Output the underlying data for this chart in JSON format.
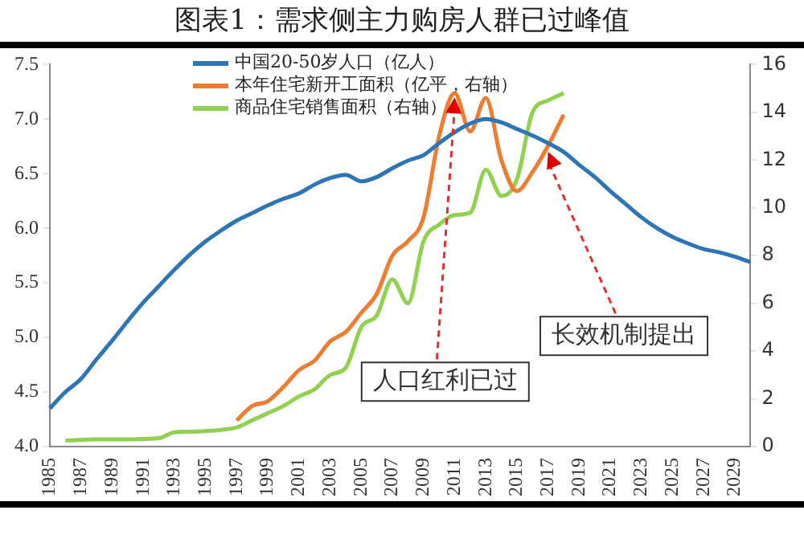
{
  "chart_data": {
    "type": "line",
    "title": "图表1：需求侧主力购房人群已过峰值",
    "categories": [
      "1985",
      null,
      "1987",
      null,
      "1989",
      null,
      "1991",
      null,
      "1993",
      null,
      "1995",
      null,
      "1997",
      null,
      "1999",
      null,
      "2001",
      null,
      "2003",
      null,
      "2005",
      null,
      "2007",
      null,
      "2009",
      null,
      "2011",
      null,
      "2013",
      null,
      "2015",
      null,
      "2017",
      null,
      "2019",
      null,
      "2021",
      null,
      "2023",
      null,
      "2025",
      null,
      "2027",
      null,
      "2029",
      null
    ],
    "series": [
      {
        "name": "中国20-50岁人口（亿人）",
        "color": "#2e75b6",
        "values": [
          4.35,
          4.5,
          4.62,
          4.8,
          4.97,
          5.15,
          5.32,
          5.47,
          5.62,
          5.76,
          5.88,
          5.98,
          6.07,
          6.14,
          6.21,
          6.27,
          6.32,
          6.4,
          6.46,
          6.49,
          6.43,
          6.47,
          6.55,
          6.62,
          6.67,
          6.78,
          6.88,
          6.96,
          7.0,
          6.97,
          6.91,
          6.85,
          6.78,
          6.7,
          6.58,
          6.47,
          6.34,
          6.22,
          6.1,
          6.0,
          5.92,
          5.86,
          5.81,
          5.78,
          5.74,
          5.69
        ]
      },
      {
        "name": "本年住宅新开工面积（亿平，右轴）",
        "color": "#ed7d31",
        "axis": "y2",
        "values": [
          null,
          null,
          null,
          null,
          null,
          null,
          null,
          null,
          null,
          null,
          null,
          null,
          1.1,
          1.7,
          1.9,
          2.5,
          3.2,
          3.6,
          4.4,
          4.8,
          5.6,
          6.4,
          8.0,
          8.6,
          9.6,
          13.0,
          14.8,
          13.2,
          14.6,
          12.0,
          10.7,
          11.5,
          12.6,
          13.9,
          null,
          null,
          null,
          null,
          null,
          null,
          null,
          null,
          null,
          null,
          null,
          null
        ]
      },
      {
        "name": "商品住宅销售面积（右轴）",
        "color": "#92d050",
        "axis": "y2",
        "values": [
          null,
          0.25,
          0.28,
          0.3,
          0.3,
          0.3,
          0.32,
          0.35,
          0.6,
          0.62,
          0.65,
          0.7,
          0.8,
          1.1,
          1.4,
          1.7,
          2.1,
          2.4,
          3.0,
          3.3,
          5.0,
          5.5,
          7.0,
          6.0,
          8.6,
          9.3,
          9.7,
          9.8,
          11.6,
          10.5,
          11.2,
          14.0,
          14.5,
          14.8,
          null,
          null,
          null,
          null,
          null,
          null,
          null,
          null,
          null,
          null,
          null,
          null
        ]
      }
    ],
    "ylim": [
      4,
      7.5
    ],
    "yticks": [
      {
        "value": 4,
        "label": "4.0"
      },
      4.5,
      {
        "value": 5,
        "label": "5.0"
      },
      5.5,
      {
        "value": 6,
        "label": "6.0"
      },
      6.5,
      {
        "value": 7,
        "label": "7.0"
      },
      7.5
    ],
    "y2lim": [
      0,
      16
    ],
    "y2ticks": [
      0,
      2,
      4,
      6,
      8,
      10,
      12,
      14,
      16
    ],
    "annotations": [
      {
        "text": "人口红利已过",
        "x": "2011",
        "y": 7.2
      },
      {
        "text": "长效机制提出",
        "x": "2017",
        "y": 6.7
      }
    ],
    "legend": "top",
    "grid": false,
    "marker": "none",
    "line_style": "solid"
  }
}
